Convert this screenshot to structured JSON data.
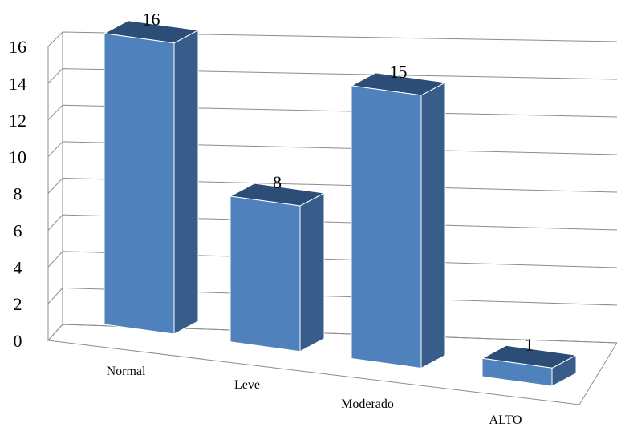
{
  "chart_data": {
    "type": "bar",
    "style": "3d-column",
    "categories": [
      "Normal",
      "Leve",
      "Moderado",
      "ALTO"
    ],
    "values": [
      16,
      8,
      15,
      1
    ],
    "data_labels": [
      "16",
      "8",
      "15",
      "1"
    ],
    "yticks": [
      "0",
      "2",
      "4",
      "6",
      "8",
      "10",
      "12",
      "14",
      "16"
    ],
    "ylim": [
      0,
      16
    ],
    "grid": true,
    "legend": "none",
    "colors": {
      "bar_front": "#4f81bd",
      "bar_side": "#385d8a",
      "bar_top": "#2c4d75",
      "bar_edge": "#ffffff",
      "grid": "#8c8c8c"
    }
  }
}
